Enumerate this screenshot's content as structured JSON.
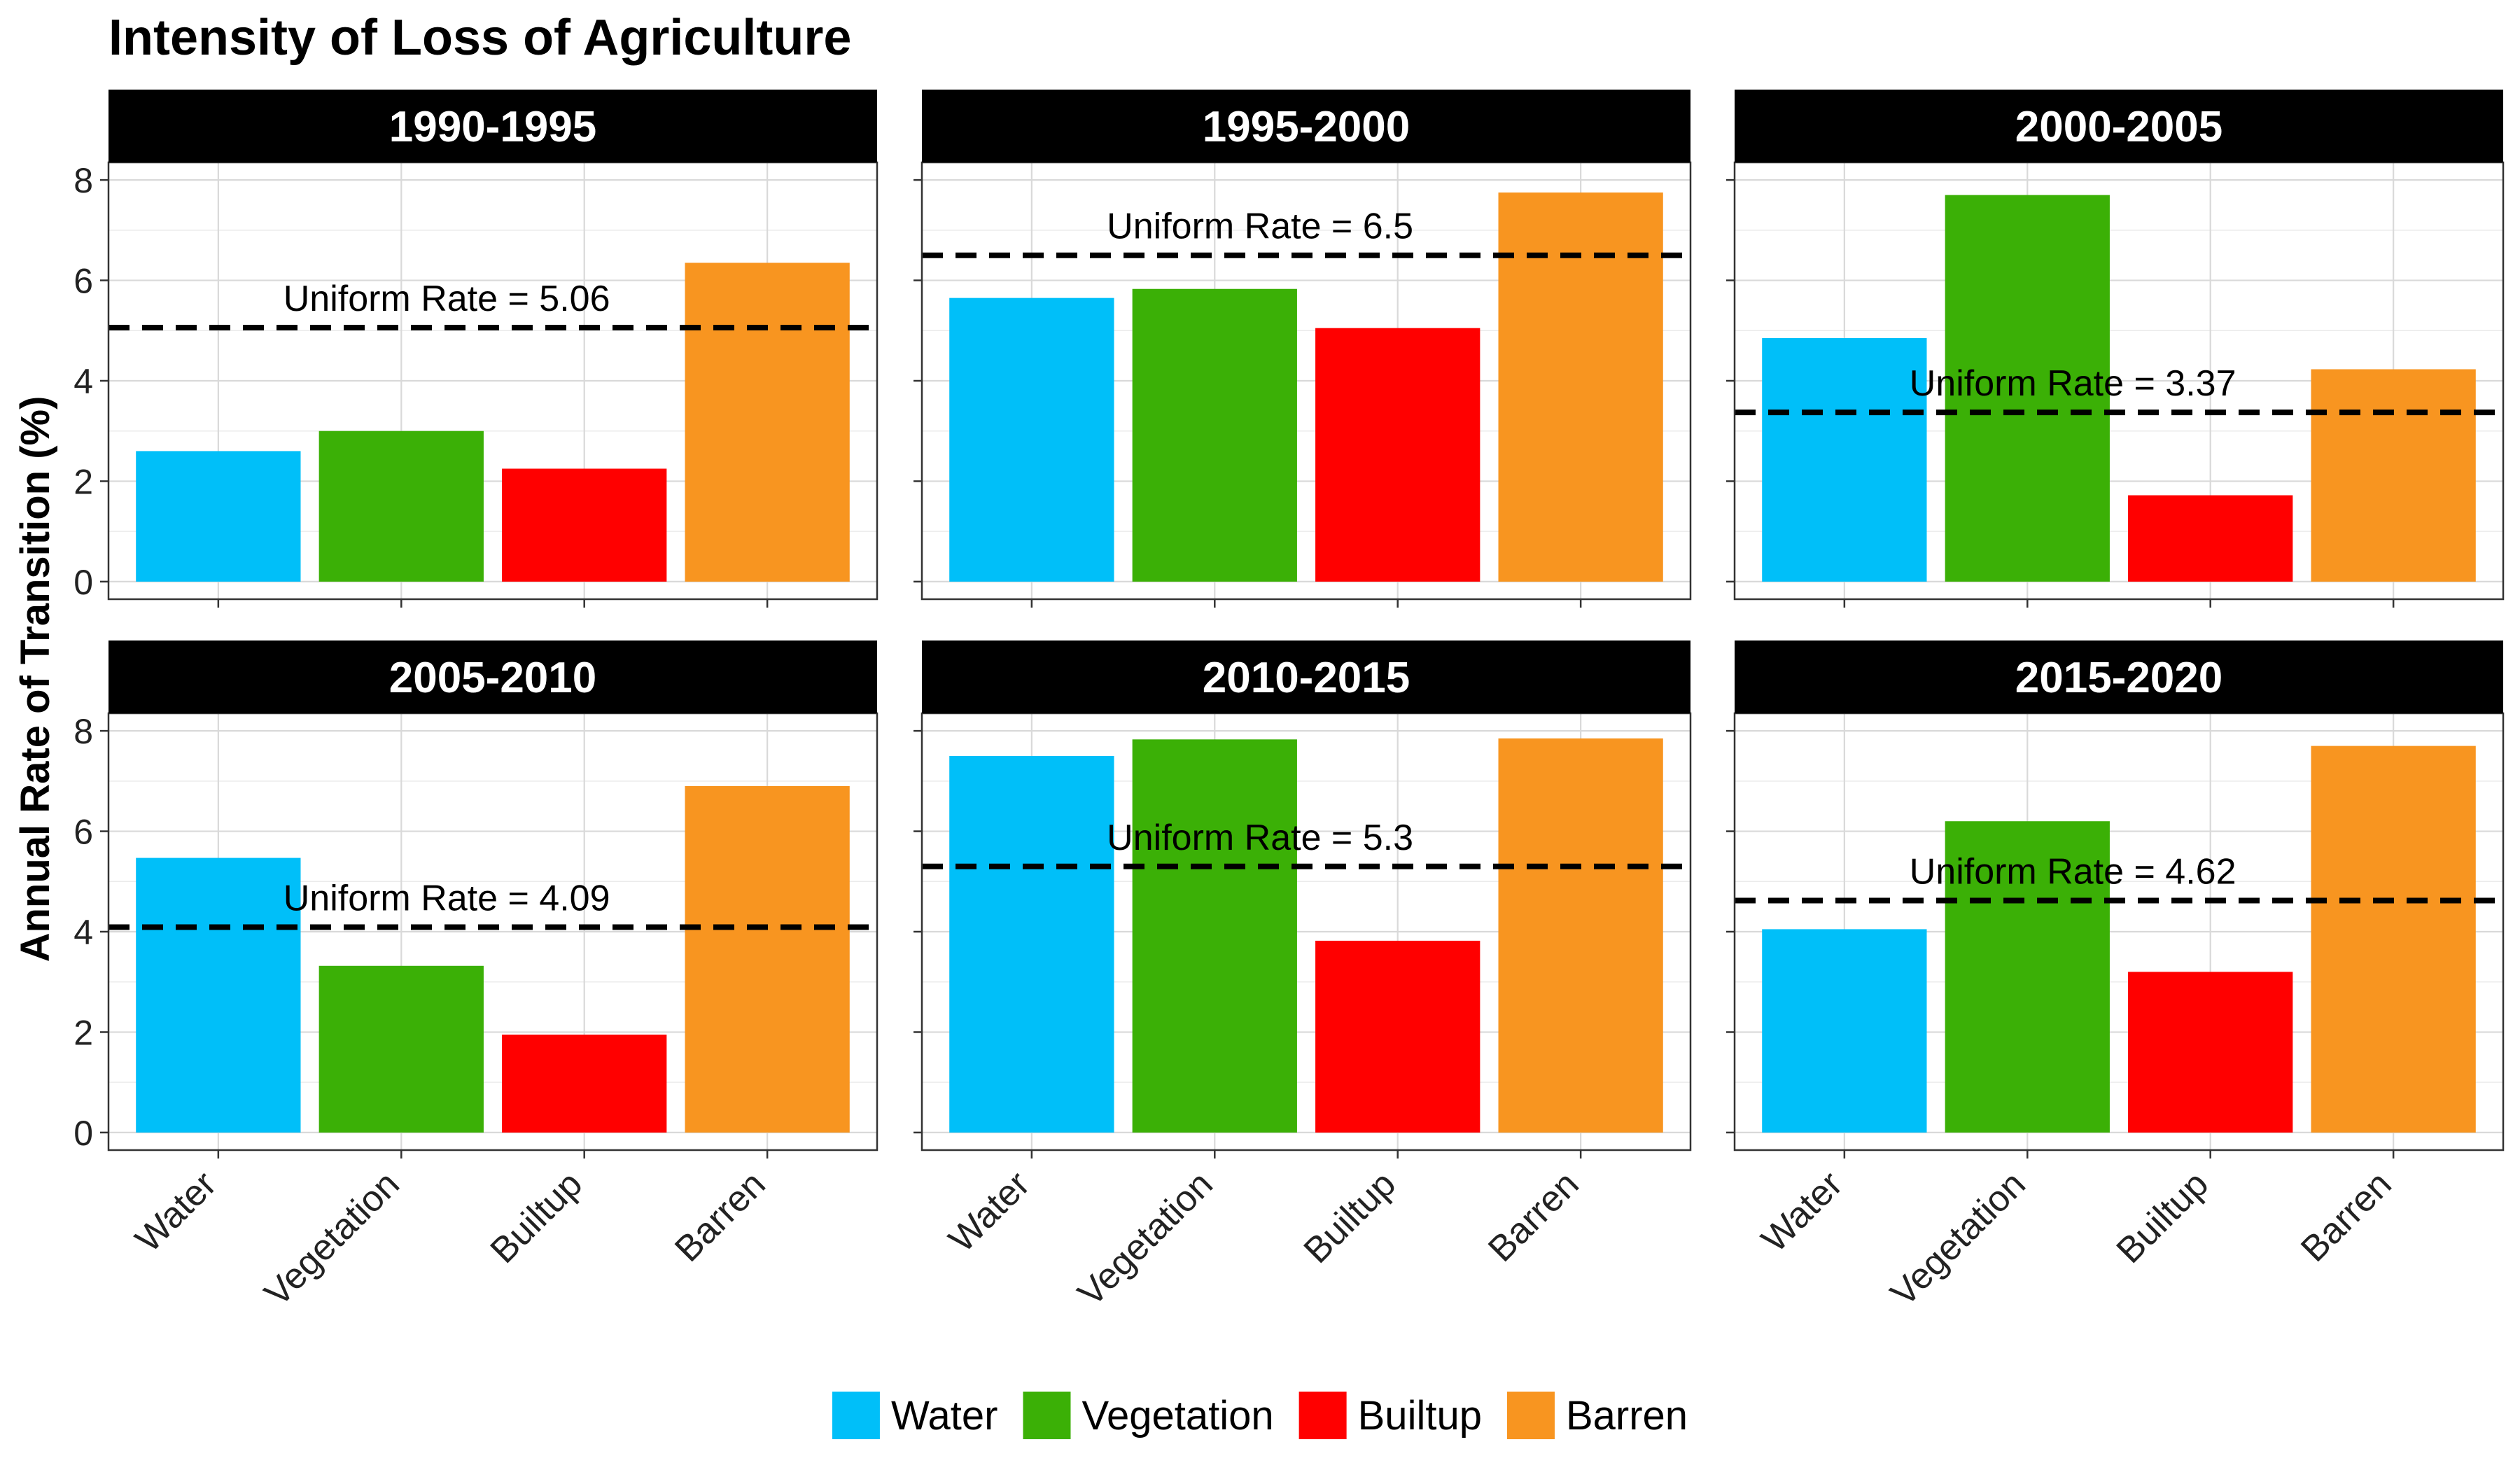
{
  "chart_data": {
    "type": "bar",
    "title": "Intensity of Loss of Agriculture",
    "ylabel": "Annual Rate of Transition (%)",
    "xlabel": "",
    "ylim": [
      -0.35,
      8.35
    ],
    "yticks": [
      0,
      2,
      4,
      6,
      8
    ],
    "categories": [
      "Water",
      "Vegetation",
      "Builtup",
      "Barren"
    ],
    "colors": {
      "Water": "#00BFF9",
      "Vegetation": "#3BB006",
      "Builtup": "#FF0000",
      "Barren": "#F89520"
    },
    "grid": true,
    "legend_position": "bottom",
    "uniform_rate_label": "Uniform Rate = ",
    "panels": [
      {
        "period": "1990-1995",
        "values": [
          2.6,
          3.0,
          2.25,
          6.35
        ],
        "uniform_rate": 5.06
      },
      {
        "period": "1995-2000",
        "values": [
          5.65,
          5.83,
          5.05,
          7.75
        ],
        "uniform_rate": 6.5
      },
      {
        "period": "2000-2005",
        "values": [
          4.85,
          7.7,
          1.72,
          4.23
        ],
        "uniform_rate": 3.37
      },
      {
        "period": "2005-2010",
        "values": [
          5.47,
          3.32,
          1.95,
          6.9
        ],
        "uniform_rate": 4.09
      },
      {
        "period": "2010-2015",
        "values": [
          7.5,
          7.83,
          3.82,
          7.85
        ],
        "uniform_rate": 5.3
      },
      {
        "period": "2015-2020",
        "values": [
          4.05,
          6.2,
          3.2,
          7.7
        ],
        "uniform_rate": 4.62
      }
    ]
  }
}
